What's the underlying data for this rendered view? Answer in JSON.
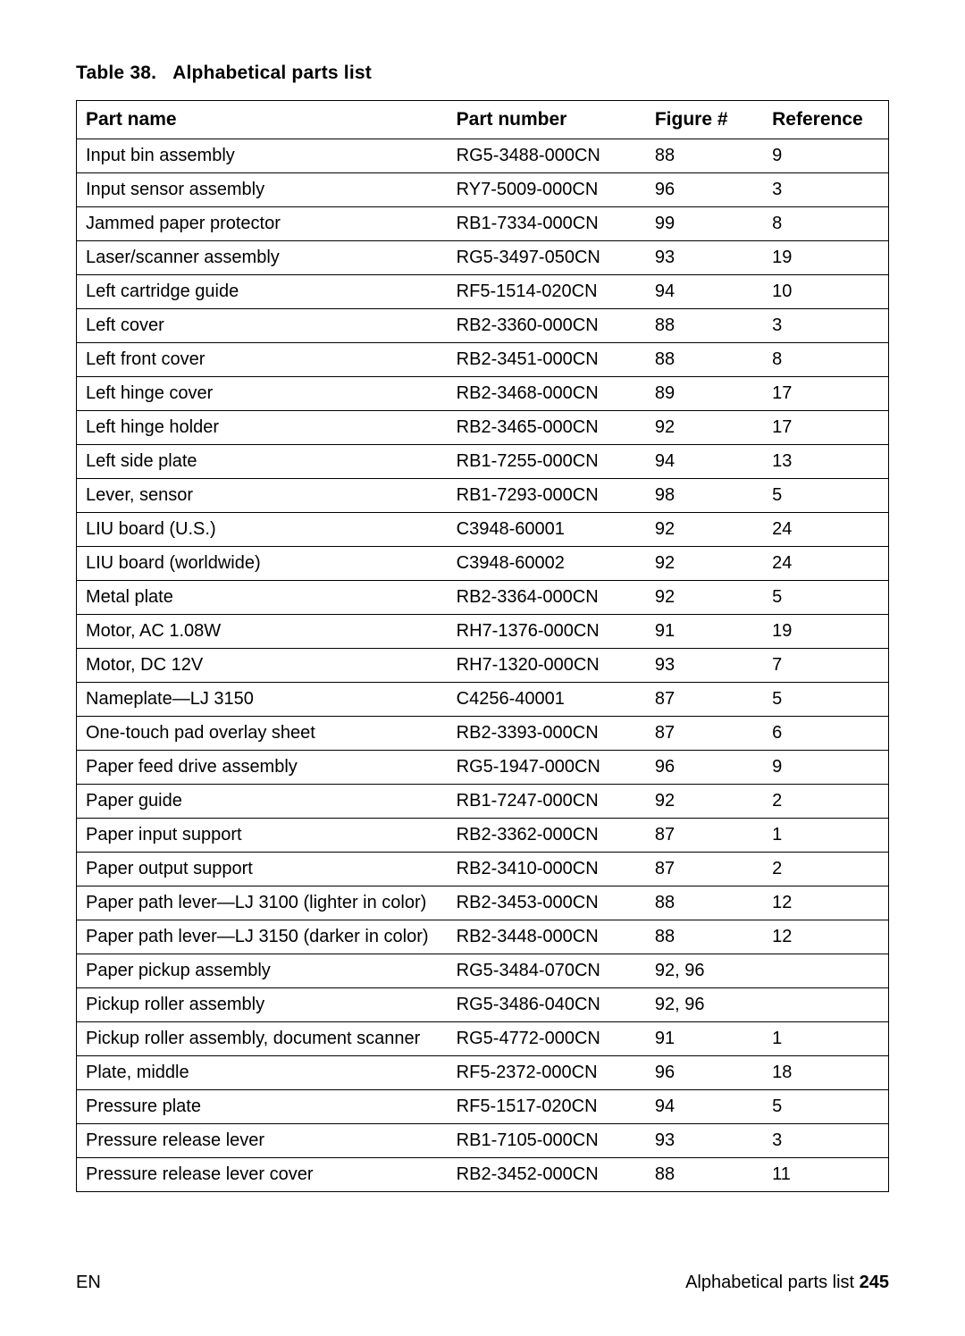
{
  "caption": {
    "label": "Table 38.",
    "title": "Alphabetical parts list"
  },
  "table": {
    "columns": [
      "Part name",
      "Part number",
      "Figure #",
      "Reference"
    ],
    "column_widths_pct": [
      41.5,
      22,
      13,
      13.5
    ],
    "rows": [
      [
        "Input bin assembly",
        "RG5-3488-000CN",
        "88",
        "9"
      ],
      [
        "Input sensor assembly",
        "RY7-5009-000CN",
        "96",
        "3"
      ],
      [
        "Jammed paper protector",
        "RB1-7334-000CN",
        "99",
        "8"
      ],
      [
        "Laser/scanner assembly",
        "RG5-3497-050CN",
        "93",
        "19"
      ],
      [
        "Left cartridge guide",
        "RF5-1514-020CN",
        "94",
        "10"
      ],
      [
        "Left cover",
        "RB2-3360-000CN",
        "88",
        "3"
      ],
      [
        "Left front cover",
        "RB2-3451-000CN",
        "88",
        "8"
      ],
      [
        "Left hinge cover",
        "RB2-3468-000CN",
        "89",
        "17"
      ],
      [
        "Left hinge holder",
        "RB2-3465-000CN",
        "92",
        "17"
      ],
      [
        "Left side plate",
        "RB1-7255-000CN",
        "94",
        "13"
      ],
      [
        "Lever, sensor",
        "RB1-7293-000CN",
        "98",
        "5"
      ],
      [
        "LIU board (U.S.)",
        "C3948-60001",
        "92",
        "24"
      ],
      [
        "LIU board (worldwide)",
        "C3948-60002",
        "92",
        "24"
      ],
      [
        "Metal plate",
        "RB2-3364-000CN",
        "92",
        "5"
      ],
      [
        "Motor, AC 1.08W",
        "RH7-1376-000CN",
        "91",
        "19"
      ],
      [
        "Motor, DC 12V",
        "RH7-1320-000CN",
        "93",
        "7"
      ],
      [
        "Nameplate—LJ 3150",
        "C4256-40001",
        "87",
        "5"
      ],
      [
        "One-touch pad overlay sheet",
        "RB2-3393-000CN",
        "87",
        "6"
      ],
      [
        "Paper feed drive assembly",
        "RG5-1947-000CN",
        "96",
        "9"
      ],
      [
        "Paper guide",
        "RB1-7247-000CN",
        "92",
        "2"
      ],
      [
        "Paper input support",
        "RB2-3362-000CN",
        "87",
        "1"
      ],
      [
        "Paper output support",
        "RB2-3410-000CN",
        "87",
        "2"
      ],
      [
        "Paper path lever—LJ 3100 (lighter in color)",
        "RB2-3453-000CN",
        "88",
        "12"
      ],
      [
        "Paper path lever—LJ 3150 (darker in color)",
        "RB2-3448-000CN",
        "88",
        "12"
      ],
      [
        "Paper pickup assembly",
        "RG5-3484-070CN",
        "92, 96",
        ""
      ],
      [
        "Pickup roller assembly",
        "RG5-3486-040CN",
        "92, 96",
        ""
      ],
      [
        "Pickup roller assembly, document scanner",
        "RG5-4772-000CN",
        "91",
        "1"
      ],
      [
        "Plate, middle",
        "RF5-2372-000CN",
        "96",
        "18"
      ],
      [
        "Pressure plate",
        "RF5-1517-020CN",
        "94",
        "5"
      ],
      [
        "Pressure release lever",
        "RB1-7105-000CN",
        "93",
        "3"
      ],
      [
        "Pressure release lever cover",
        "RB2-3452-000CN",
        "88",
        "11"
      ]
    ],
    "border_color": "#000000",
    "font_size_header": 21,
    "font_size_body": 20
  },
  "footer": {
    "left": "EN",
    "right_text": "Alphabetical parts list ",
    "page_number": "245"
  },
  "colors": {
    "background": "#ffffff",
    "text": "#000000",
    "border": "#000000"
  }
}
